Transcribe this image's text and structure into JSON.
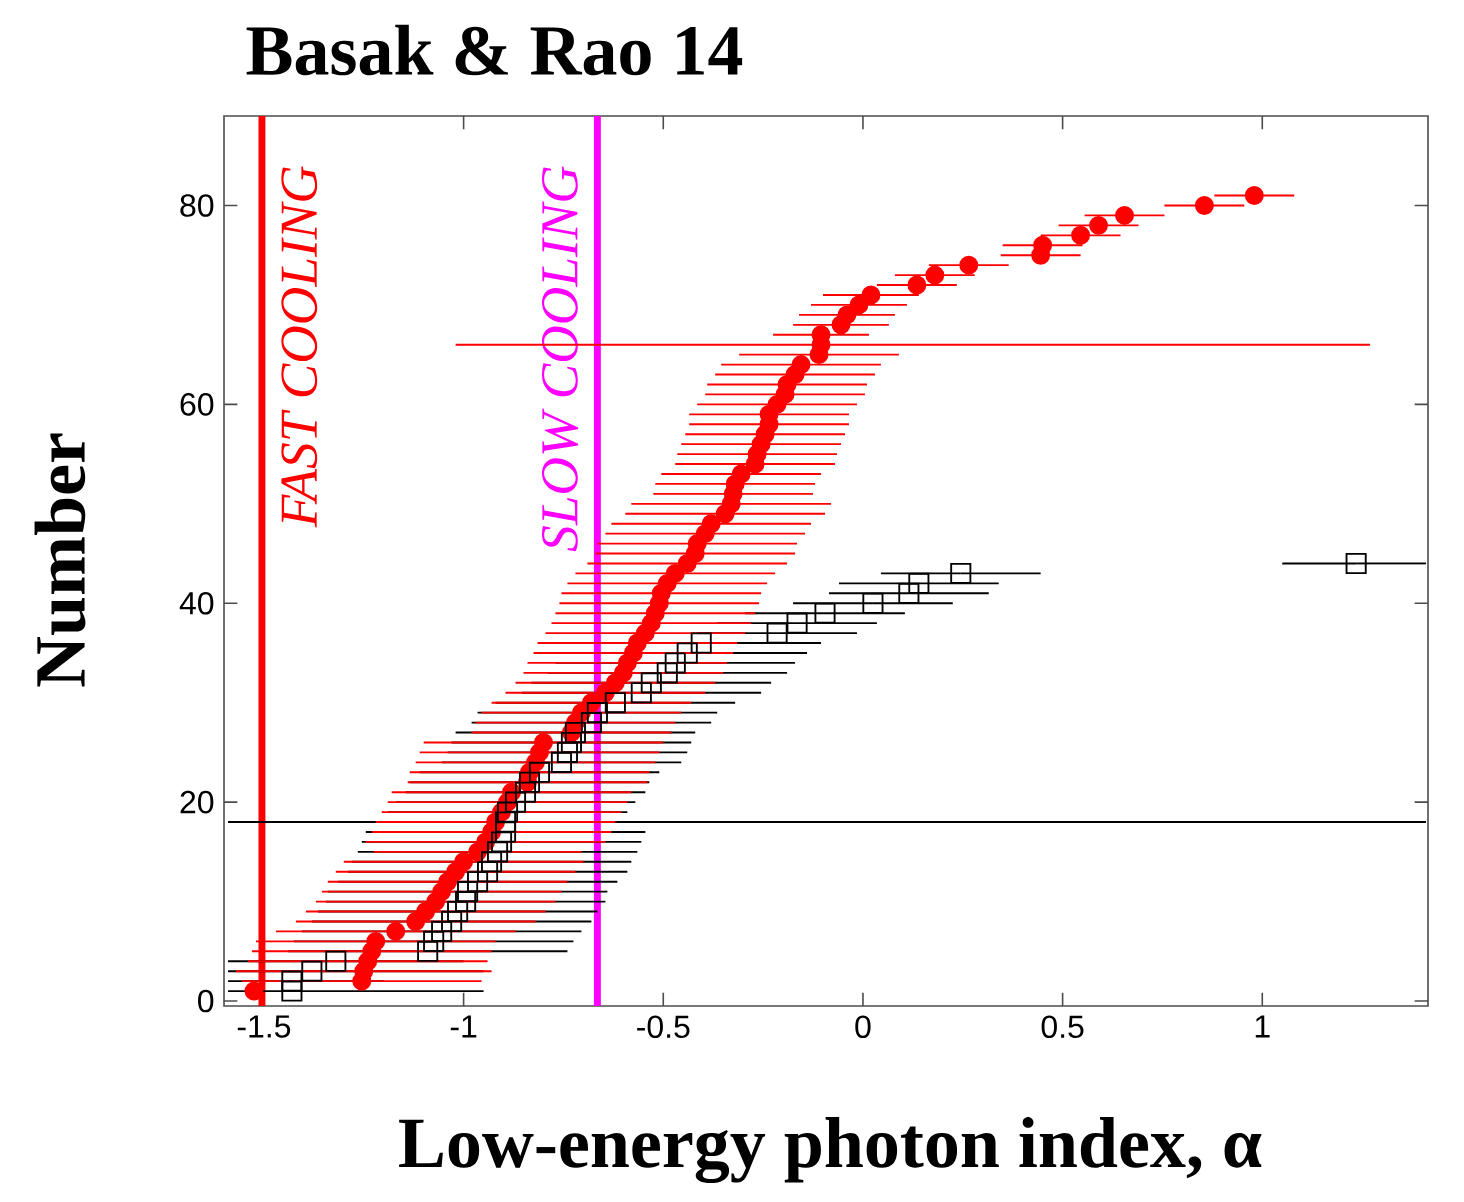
{
  "chart_data": {
    "type": "scatter",
    "title": "Basak & Rao 14",
    "xlabel": "Low-energy photon index, α",
    "ylabel": "Number",
    "xlim": [
      -1.6,
      1.415
    ],
    "ylim": [
      -0.5,
      89
    ],
    "xticks": [
      -1.5,
      -1,
      -0.5,
      0,
      0.5,
      1
    ],
    "yticks": [
      0,
      20,
      40,
      60,
      80
    ],
    "grid": false,
    "series": [
      {
        "color": "#000000",
        "marker": "square",
        "x": [
          -1.43,
          -1.43,
          -1.38,
          -1.32,
          -1.09,
          -1.075,
          -1.055,
          -1.03,
          -1.015,
          -0.995,
          -0.99,
          -0.965,
          -0.94,
          -0.93,
          -0.915,
          -0.905,
          -0.895,
          -0.895,
          -0.89,
          -0.87,
          -0.845,
          -0.835,
          -0.81,
          -0.755,
          -0.74,
          -0.73,
          -0.72,
          -0.68,
          -0.665,
          -0.62,
          -0.555,
          -0.53,
          -0.49,
          -0.47,
          -0.44,
          -0.405,
          -0.215,
          -0.165,
          -0.095,
          0.025,
          0.115,
          0.14,
          0.245,
          1.235
        ],
        "values": [
          1,
          2,
          3,
          4,
          5,
          6,
          7,
          8,
          9,
          10,
          11,
          12,
          13,
          14,
          15,
          16,
          17,
          18,
          19,
          20,
          21,
          22,
          23,
          24,
          25,
          26,
          27,
          28,
          29,
          30,
          31,
          32,
          33,
          34,
          35,
          36,
          37,
          38,
          39,
          40,
          41,
          42,
          43,
          44
        ],
        "xerrors": [
          [
            -1.59,
            -0.95
          ],
          [
            -1.59,
            -1.2
          ],
          [
            -1.59,
            -0.95
          ],
          [
            -1.59,
            -1.0
          ],
          0.35,
          0.35,
          0.35,
          0.35,
          0.35,
          0.35,
          0.35,
          0.35,
          0.35,
          0.35,
          0.35,
          0.35,
          0.35,
          [
            -1.59,
            1.41
          ],
          0.3,
          0.3,
          0.3,
          0.3,
          0.3,
          0.3,
          0.3,
          0.3,
          0.3,
          0.3,
          0.3,
          0.3,
          0.3,
          0.3,
          0.3,
          0.3,
          0.3,
          0.3,
          0.2,
          0.2,
          0.2,
          0.2,
          0.2,
          0.2,
          0.2,
          [
            1.05,
            1.41
          ]
        ]
      },
      {
        "color": "#ff0000",
        "marker": "circle",
        "x": [
          -1.525,
          -1.255,
          -1.25,
          -1.24,
          -1.23,
          -1.22,
          -1.17,
          -1.12,
          -1.095,
          -1.07,
          -1.055,
          -1.04,
          -1.02,
          -1.0,
          -0.965,
          -0.945,
          -0.93,
          -0.92,
          -0.905,
          -0.89,
          -0.88,
          -0.84,
          -0.835,
          -0.82,
          -0.81,
          -0.8,
          -0.73,
          -0.72,
          -0.705,
          -0.68,
          -0.645,
          -0.62,
          -0.6,
          -0.59,
          -0.575,
          -0.565,
          -0.545,
          -0.53,
          -0.52,
          -0.51,
          -0.505,
          -0.49,
          -0.47,
          -0.44,
          -0.42,
          -0.415,
          -0.395,
          -0.38,
          -0.345,
          -0.33,
          -0.325,
          -0.32,
          -0.305,
          -0.27,
          -0.265,
          -0.255,
          -0.245,
          -0.235,
          -0.235,
          -0.215,
          -0.195,
          -0.19,
          -0.17,
          -0.155,
          -0.11,
          -0.105,
          -0.105,
          -0.055,
          -0.04,
          -0.01,
          0.02,
          0.135,
          0.18,
          0.265,
          0.445,
          0.45,
          0.545,
          0.59,
          0.655,
          0.855,
          0.98
        ],
        "values": [
          1,
          2,
          3,
          4,
          5,
          6,
          7,
          8,
          9,
          10,
          11,
          12,
          13,
          14,
          15,
          16,
          17,
          18,
          19,
          20,
          21,
          22,
          23,
          24,
          25,
          26,
          27,
          28,
          29,
          30,
          31,
          32,
          33,
          34,
          35,
          36,
          37,
          38,
          39,
          40,
          41,
          42,
          43,
          44,
          45,
          46,
          47,
          48,
          49,
          50,
          51,
          52,
          53,
          54,
          55,
          56,
          57,
          58,
          59,
          60,
          61,
          62,
          63,
          64,
          65,
          66,
          67,
          68,
          69,
          70,
          71,
          72,
          73,
          74,
          75,
          76,
          77,
          78,
          79,
          80,
          81
        ],
        "xerrors": [
          null,
          0.3,
          0.32,
          0.3,
          0.3,
          0.3,
          0.3,
          0.3,
          0.3,
          0.3,
          0.3,
          0.3,
          0.3,
          0.3,
          0.26,
          0.3,
          0.3,
          0.3,
          0.3,
          0.3,
          0.3,
          0.3,
          0.3,
          0.3,
          0.3,
          0.3,
          0.25,
          0.25,
          0.25,
          0.25,
          0.25,
          0.25,
          0.25,
          0.25,
          0.25,
          0.25,
          0.25,
          0.25,
          0.25,
          0.25,
          0.25,
          0.25,
          0.25,
          0.25,
          0.25,
          0.25,
          0.25,
          0.25,
          0.25,
          0.25,
          0.2,
          0.2,
          0.2,
          0.2,
          0.2,
          0.2,
          0.2,
          0.2,
          0.2,
          0.2,
          0.2,
          0.2,
          0.2,
          0.2,
          0.2,
          [
            -1.02,
            1.27
          ],
          0.12,
          0.12,
          0.12,
          0.12,
          0.12,
          0.1,
          0.1,
          0.1,
          0.1,
          0.1,
          0.1,
          0.1,
          0.1,
          0.1,
          0.1
        ]
      }
    ],
    "ref_lines": [
      {
        "axis": "x",
        "value": -1.505,
        "label": "FAST COOLING",
        "color": "#ff0000"
      },
      {
        "axis": "x",
        "value": -0.665,
        "label": "SLOW COOLING",
        "color": "#ff00ff"
      }
    ]
  }
}
